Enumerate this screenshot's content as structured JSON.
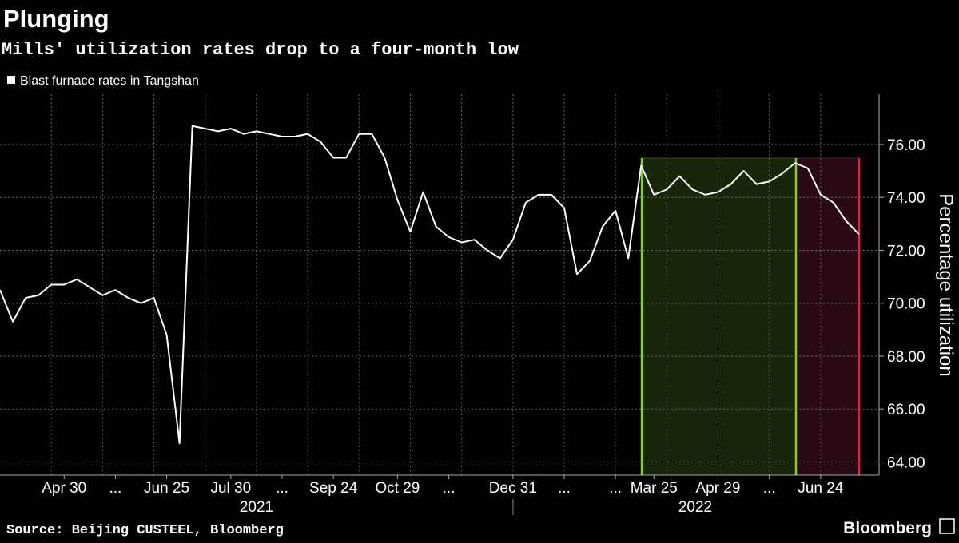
{
  "chart_data": {
    "type": "line",
    "title": "Plunging",
    "subtitle": "Mills' utilization rates drop to a four-month low",
    "y_axis_label": "Percentage utilization",
    "source": "Source: Beijing CUSTEEL, Bloomberg",
    "brand": "Bloomberg",
    "categories": [
      null,
      null,
      null,
      null,
      null,
      "Apr 30",
      null,
      null,
      null,
      "...",
      null,
      null,
      null,
      "Jun 25",
      null,
      null,
      null,
      null,
      "Jul 30",
      null,
      null,
      null,
      "...",
      null,
      null,
      null,
      "Sep 24",
      null,
      null,
      null,
      null,
      "Oct 29",
      null,
      null,
      null,
      "...",
      null,
      null,
      null,
      null,
      "Dec 31",
      null,
      null,
      null,
      "...",
      null,
      null,
      null,
      "...",
      null,
      null,
      "Mar 25",
      null,
      null,
      null,
      null,
      "Apr 29",
      null,
      null,
      null,
      "...",
      null,
      null,
      null,
      "Jun 24",
      null,
      null,
      null
    ],
    "years": [
      "2021",
      "2022"
    ],
    "series": [
      {
        "name": "Blast furnace rates in Tangshan",
        "color": "#ffffff",
        "values": [
          70.5,
          69.3,
          70.2,
          70.3,
          70.7,
          70.7,
          70.9,
          70.6,
          70.3,
          70.5,
          70.2,
          70.0,
          70.2,
          68.8,
          64.7,
          76.7,
          76.6,
          76.5,
          76.6,
          76.4,
          76.5,
          76.4,
          76.3,
          76.3,
          76.4,
          76.1,
          75.5,
          75.5,
          76.4,
          76.4,
          75.5,
          73.9,
          72.7,
          74.2,
          72.9,
          72.5,
          72.3,
          72.4,
          72.0,
          71.7,
          72.4,
          73.8,
          74.1,
          74.1,
          73.6,
          71.1,
          71.6,
          72.9,
          73.5,
          71.7,
          75.2,
          74.1,
          74.3,
          74.8,
          74.3,
          74.1,
          74.2,
          74.5,
          75.0,
          74.5,
          74.6,
          74.9,
          75.3,
          75.1,
          74.1,
          73.8,
          73.1,
          72.6
        ]
      }
    ],
    "ylim": [
      63.5,
      77.9
    ],
    "yticks": [
      {
        "value": 64,
        "label": "64.00"
      },
      {
        "value": 66,
        "label": "66.00"
      },
      {
        "value": 68,
        "label": "68.00"
      },
      {
        "value": 70,
        "label": "70.00"
      },
      {
        "value": 72,
        "label": "72.00"
      },
      {
        "value": 74,
        "label": "74.00"
      },
      {
        "value": 76,
        "label": "76.00"
      }
    ],
    "grid": true
  }
}
